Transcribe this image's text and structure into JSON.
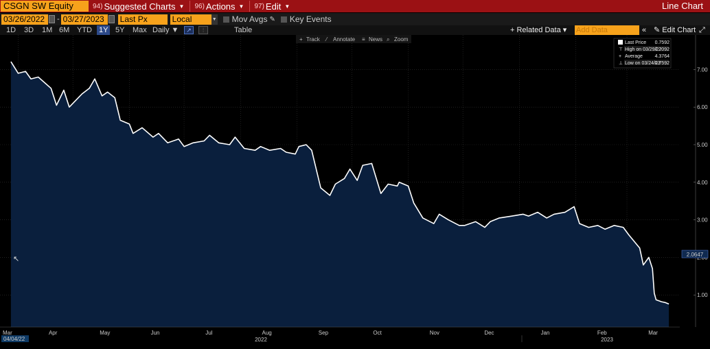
{
  "topbar": {
    "ticker": "CSGN SW Equity",
    "menus": [
      {
        "num": "94)",
        "label": "Suggested Charts"
      },
      {
        "num": "96)",
        "label": "Actions"
      },
      {
        "num": "97)",
        "label": "Edit"
      }
    ],
    "chart_type": "Line Chart"
  },
  "controls": {
    "start_date": "03/26/2022",
    "end_date": "03/27/2023",
    "field": "Last Px",
    "currency": "Local CCY",
    "mov_avgs": "Mov Avgs",
    "key_events": "Key Events"
  },
  "periods": [
    "1D",
    "3D",
    "1M",
    "6M",
    "YTD",
    "1Y",
    "5Y",
    "Max"
  ],
  "active_period": "1Y",
  "frequency": "Daily",
  "table_label": "Table",
  "related_data": "+ Related Data",
  "add_data_placeholder": "Add Data",
  "edit_chart": "Edit Chart",
  "toolbar": {
    "track": "Track",
    "annotate": "Annotate",
    "news": "News",
    "zoom": "Zoom"
  },
  "legend": {
    "last_price_label": "Last Price",
    "last_price_value": "0.7592",
    "high_label": "High on 03/29/22",
    "high_value": "7.2092",
    "average_label": "Average",
    "average_value": "4.3764",
    "low_label": "Low on 03/24/23",
    "low_value": "0.7592"
  },
  "crosshair_value": "2.0647",
  "start_date_marker": "04/04/22",
  "colors": {
    "line": "#ffffff",
    "area": "#0a1f3d",
    "accent": "#f7a21b",
    "header": "#9b1114"
  },
  "chart_data": {
    "type": "area",
    "title": "CSGN SW Equity",
    "xlabel": "",
    "ylabel": "",
    "ylim": [
      0,
      8
    ],
    "yticks": [
      "1.00",
      "2.00",
      "3.00",
      "4.00",
      "5.00",
      "6.00",
      "7.00"
    ],
    "x_month_labels": [
      "Mar",
      "Apr",
      "May",
      "Jun",
      "Jul",
      "Aug",
      "Sep",
      "Oct",
      "Nov",
      "Dec",
      "Jan",
      "Feb",
      "Mar"
    ],
    "x_year_labels": [
      "2022",
      "2023"
    ],
    "grid": true,
    "legend_position": "top-right",
    "series": [
      {
        "name": "Last Price",
        "x": [
          "2022-03-28",
          "2022-04-01",
          "2022-04-05",
          "2022-04-08",
          "2022-04-12",
          "2022-04-19",
          "2022-04-22",
          "2022-04-26",
          "2022-04-29",
          "2022-05-03",
          "2022-05-06",
          "2022-05-10",
          "2022-05-13",
          "2022-05-17",
          "2022-05-20",
          "2022-05-24",
          "2022-05-27",
          "2022-06-01",
          "2022-06-03",
          "2022-06-08",
          "2022-06-14",
          "2022-06-17",
          "2022-06-22",
          "2022-06-28",
          "2022-07-01",
          "2022-07-06",
          "2022-07-12",
          "2022-07-15",
          "2022-07-20",
          "2022-07-26",
          "2022-07-29",
          "2022-08-03",
          "2022-08-09",
          "2022-08-12",
          "2022-08-17",
          "2022-08-23",
          "2022-08-26",
          "2022-08-31",
          "2022-09-02",
          "2022-09-06",
          "2022-09-09",
          "2022-09-14",
          "2022-09-19",
          "2022-09-22",
          "2022-09-27",
          "2022-09-30",
          "2022-10-04",
          "2022-10-07",
          "2022-10-12",
          "2022-10-17",
          "2022-10-21",
          "2022-10-26",
          "2022-10-27",
          "2022-11-01",
          "2022-11-04",
          "2022-11-09",
          "2022-11-15",
          "2022-11-18",
          "2022-11-23",
          "2022-11-29",
          "2022-12-02",
          "2022-12-08",
          "2022-12-13",
          "2022-12-16",
          "2022-12-21",
          "2022-12-28",
          "2023-01-03",
          "2023-01-06",
          "2023-01-11",
          "2023-01-16",
          "2023-01-20",
          "2023-01-26",
          "2023-01-31",
          "2023-02-03",
          "2023-02-08",
          "2023-02-13",
          "2023-02-17",
          "2023-02-22",
          "2023-02-27",
          "2023-03-02",
          "2023-03-08",
          "2023-03-10",
          "2023-03-13",
          "2023-03-15",
          "2023-03-16",
          "2023-03-17",
          "2023-03-20",
          "2023-03-22",
          "2023-03-24"
        ],
        "y": [
          7.21,
          6.9,
          6.95,
          6.75,
          6.8,
          6.5,
          6.05,
          6.45,
          6.0,
          6.2,
          6.35,
          6.5,
          6.75,
          6.3,
          6.4,
          6.25,
          5.65,
          5.55,
          5.3,
          5.45,
          5.2,
          5.3,
          5.05,
          5.15,
          4.95,
          5.05,
          5.1,
          5.25,
          5.05,
          5.0,
          5.2,
          4.9,
          4.85,
          4.95,
          4.85,
          4.9,
          4.8,
          4.75,
          4.95,
          5.0,
          4.85,
          3.85,
          3.65,
          3.95,
          4.1,
          4.35,
          4.05,
          4.45,
          4.5,
          3.7,
          3.95,
          3.9,
          4.0,
          3.9,
          3.45,
          3.05,
          2.9,
          3.15,
          3.0,
          2.85,
          2.85,
          2.95,
          2.8,
          2.95,
          3.05,
          3.1,
          3.15,
          3.1,
          3.2,
          3.05,
          3.15,
          3.2,
          3.35,
          2.9,
          2.8,
          2.85,
          2.75,
          2.85,
          2.8,
          2.6,
          2.25,
          1.8,
          2.0,
          1.7,
          1.05,
          0.87,
          0.82,
          0.8,
          0.76
        ]
      }
    ]
  }
}
